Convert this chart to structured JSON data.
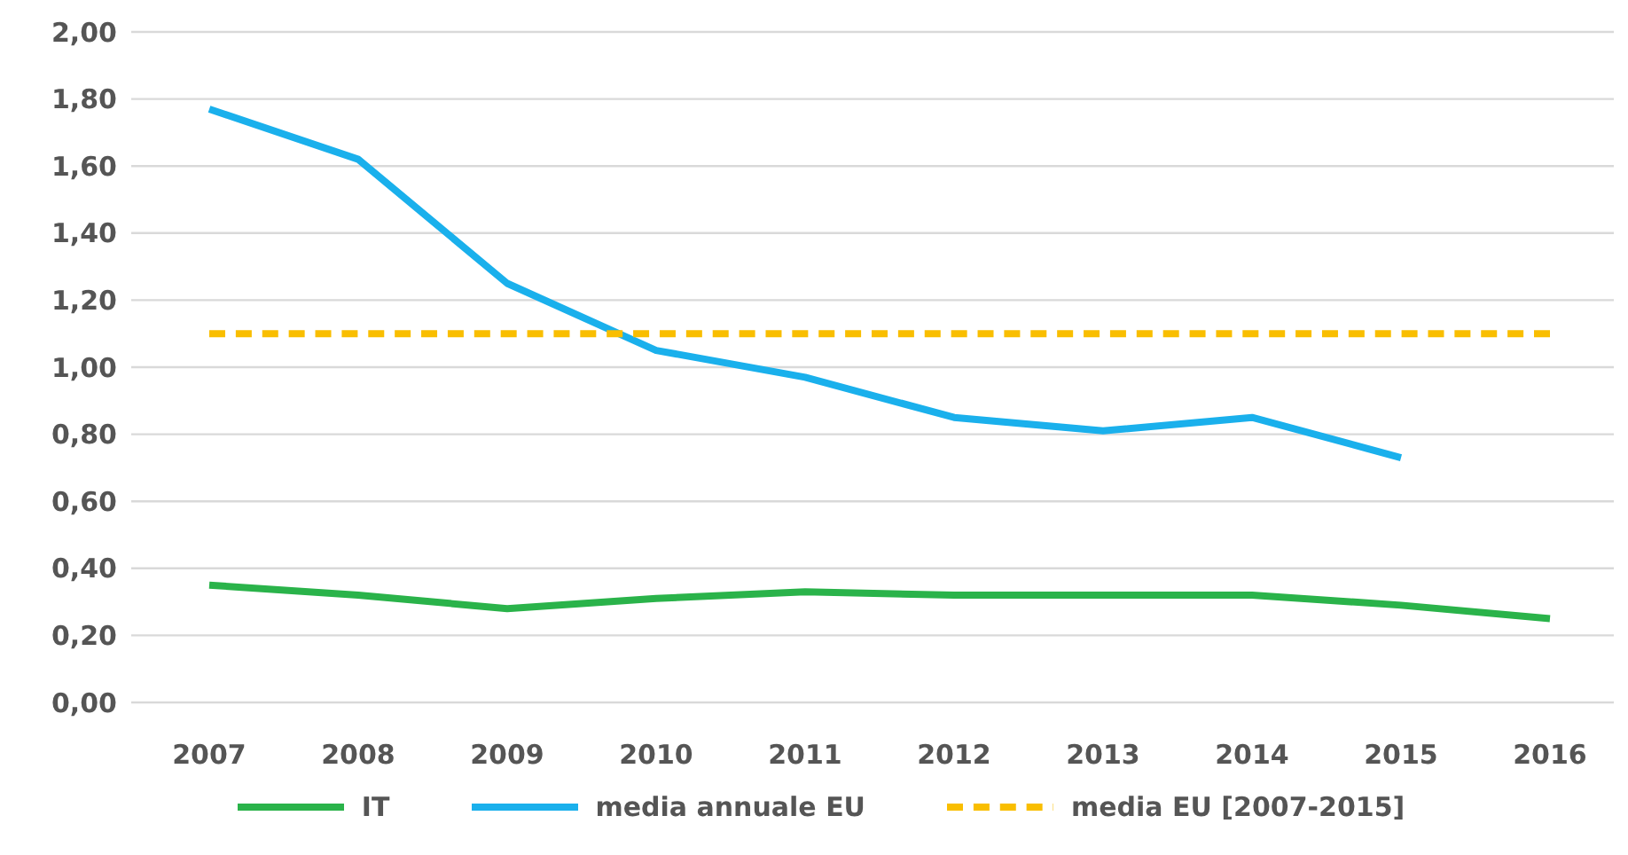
{
  "chart_data": {
    "type": "line",
    "categories": [
      "2007",
      "2008",
      "2009",
      "2010",
      "2011",
      "2012",
      "2013",
      "2014",
      "2015",
      "2016"
    ],
    "series": [
      {
        "name": "IT",
        "color": "#2ab34a",
        "values": [
          0.35,
          0.32,
          0.28,
          0.31,
          0.33,
          0.32,
          0.32,
          0.32,
          0.29,
          0.25
        ]
      },
      {
        "name": "media annuale EU",
        "color": "#1ab0ec",
        "values": [
          1.77,
          1.62,
          1.25,
          1.05,
          0.97,
          0.85,
          0.81,
          0.85,
          0.73,
          null
        ]
      },
      {
        "name": "media EU [2007-2015]",
        "color": "#f9be00",
        "line_style": "dashed",
        "values": [
          1.1,
          1.1,
          1.1,
          1.1,
          1.1,
          1.1,
          1.1,
          1.1,
          1.1,
          1.1
        ]
      }
    ],
    "ylim": [
      0,
      2
    ],
    "yticks": [
      {
        "value": 0,
        "label": "0,00"
      },
      {
        "value": 0.2,
        "label": "0,20"
      },
      {
        "value": 0.4,
        "label": "0,40"
      },
      {
        "value": 0.6,
        "label": "0,60"
      },
      {
        "value": 0.8,
        "label": "0,80"
      },
      {
        "value": 1,
        "label": "1,00"
      },
      {
        "value": 1.2,
        "label": "1,20"
      },
      {
        "value": 1.4,
        "label": "1,40"
      },
      {
        "value": 1.6,
        "label": "1,60"
      },
      {
        "value": 1.8,
        "label": "1,80"
      },
      {
        "value": 2,
        "label": "2,00"
      }
    ],
    "grid": "y",
    "legend": "bottom",
    "marker": "none",
    "line_style": "solid"
  }
}
